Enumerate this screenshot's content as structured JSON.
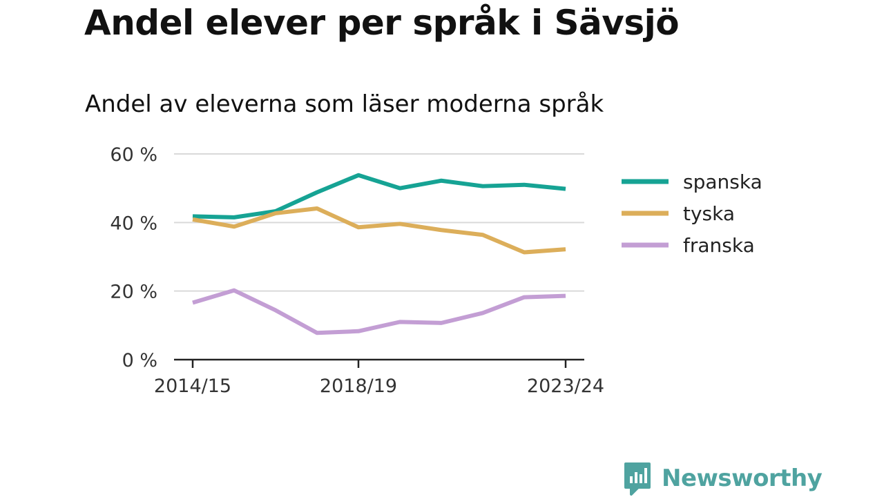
{
  "header": {
    "title": "Andel elever per språk i Sävsjö",
    "subtitle": "Andel av eleverna som läser moderna språk"
  },
  "branding": {
    "logo_text": "Newsworthy",
    "logo_color": "#4fa3a0",
    "logo_icon": "bar-chart-speech-bubble-icon"
  },
  "chart_data": {
    "type": "line",
    "x": [
      "2014/15",
      "2015/16",
      "2016/17",
      "2017/18",
      "2018/19",
      "2019/20",
      "2020/21",
      "2021/22",
      "2022/23",
      "2023/24"
    ],
    "x_tick_labels": [
      "2014/15",
      "2018/19",
      "2023/24"
    ],
    "y_tick_labels": [
      "0 %",
      "20 %",
      "40 %",
      "60 %"
    ],
    "y_ticks": [
      0,
      20,
      40,
      60
    ],
    "ylim": [
      0,
      60
    ],
    "grid": true,
    "legend_position": "right",
    "series": [
      {
        "name": "spanska",
        "color": "#16a394",
        "values": [
          41.8,
          41.5,
          43.3,
          48.8,
          53.8,
          50.0,
          52.2,
          50.6,
          51.0,
          49.8
        ]
      },
      {
        "name": "tyska",
        "color": "#dcae5a",
        "values": [
          40.9,
          38.8,
          42.7,
          44.1,
          38.6,
          39.6,
          37.8,
          36.4,
          31.3,
          32.2
        ]
      },
      {
        "name": "franska",
        "color": "#c39ed4",
        "values": [
          16.6,
          20.2,
          14.4,
          7.8,
          8.3,
          11.0,
          10.7,
          13.6,
          18.2,
          18.6
        ]
      }
    ]
  }
}
